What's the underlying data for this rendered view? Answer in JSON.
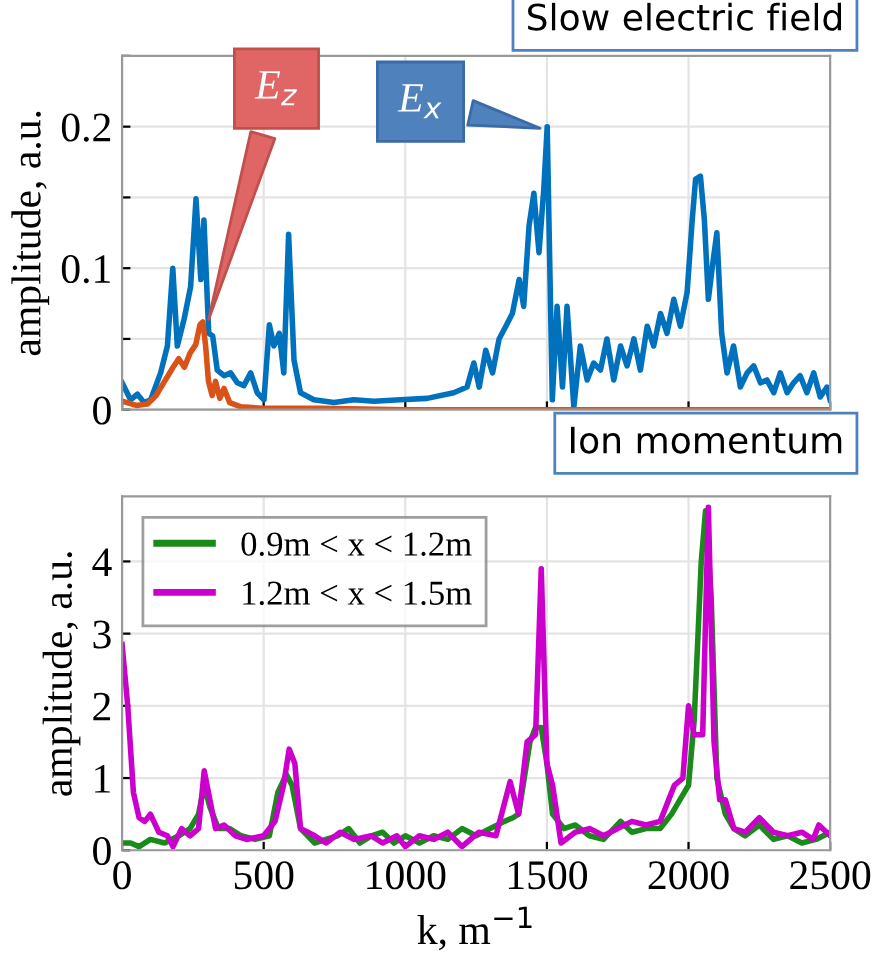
{
  "chart_data": [
    {
      "type": "line",
      "xlim": [
        0,
        2500
      ],
      "xticks": [
        {
          "value": 0,
          "label": null
        },
        {
          "value": 500,
          "label": null
        },
        {
          "value": 1000,
          "label": null
        },
        {
          "value": 1500,
          "label": null
        },
        {
          "value": 2000,
          "label": null
        },
        {
          "value": 2500,
          "label": null
        }
      ],
      "ylim": [
        0,
        0.25
      ],
      "yticks": [
        0,
        {
          "value": 0.05,
          "label": null
        },
        0.1,
        {
          "value": 0.15,
          "label": null
        },
        0.2,
        {
          "value": 0.25,
          "label": null
        }
      ],
      "ylabel": "amplitude, a.u.",
      "tick_labels": "y",
      "grid": true,
      "annotations": [
        "Slow electric field",
        {
          "text": "E$_{z}$",
          "x": 300,
          "y": 0.06
        },
        {
          "text": "E$_{x}$",
          "x": 1495,
          "y": 0.198
        }
      ],
      "series": [
        {
          "color": "#0072bd",
          "x": [
            0,
            30,
            54,
            78,
            101,
            136,
            160,
            179,
            195,
            219,
            242,
            261,
            278,
            289,
            306,
            320,
            336,
            360,
            383,
            407,
            430,
            454,
            477,
            501,
            520,
            536,
            555,
            571,
            588,
            607,
            630,
            677,
            748,
            818,
            889,
            983,
            1077,
            1171,
            1218,
            1242,
            1261,
            1284,
            1308,
            1331,
            1355,
            1378,
            1402,
            1418,
            1437,
            1454,
            1472,
            1489,
            1501,
            1519,
            1536,
            1555,
            1571,
            1595,
            1618,
            1642,
            1665,
            1689,
            1712,
            1736,
            1760,
            1783,
            1807,
            1830,
            1854,
            1877,
            1901,
            1924,
            1948,
            1971,
            1995,
            2013,
            2025,
            2042,
            2056,
            2070,
            2084,
            2100,
            2117,
            2136,
            2159,
            2183,
            2207,
            2230,
            2254,
            2277,
            2301,
            2324,
            2348,
            2371,
            2394,
            2418,
            2442,
            2465,
            2489,
            2500
          ],
          "values": [
            0.019,
            0.007,
            0.011,
            0.005,
            0.007,
            0.026,
            0.045,
            0.1,
            0.045,
            0.064,
            0.087,
            0.149,
            0.092,
            0.134,
            0.054,
            0.052,
            0.028,
            0.024,
            0.026,
            0.019,
            0.017,
            0.026,
            0.012,
            0.007,
            0.06,
            0.045,
            0.054,
            0.026,
            0.124,
            0.035,
            0.012,
            0.007,
            0.005,
            0.007,
            0.006,
            0.007,
            0.008,
            0.012,
            0.016,
            0.033,
            0.016,
            0.042,
            0.026,
            0.05,
            0.059,
            0.068,
            0.092,
            0.073,
            0.13,
            0.153,
            0.111,
            0.156,
            0.2,
            0.007,
            0.073,
            0.016,
            0.073,
            0.002,
            0.045,
            0.021,
            0.033,
            0.028,
            0.05,
            0.021,
            0.045,
            0.031,
            0.05,
            0.028,
            0.059,
            0.045,
            0.068,
            0.054,
            0.078,
            0.059,
            0.083,
            0.134,
            0.163,
            0.165,
            0.134,
            0.078,
            0.101,
            0.125,
            0.054,
            0.026,
            0.045,
            0.016,
            0.026,
            0.031,
            0.019,
            0.021,
            0.012,
            0.026,
            0.012,
            0.019,
            0.024,
            0.012,
            0.026,
            0.009,
            0.016,
            0.007
          ]
        },
        {
          "color": "#d95319",
          "x": [
            0,
            50,
            90,
            120,
            150,
            180,
            200,
            220,
            240,
            260,
            275,
            285,
            295,
            305,
            318,
            330,
            345,
            360,
            380,
            420,
            500,
            700,
            1000,
            1500,
            2000,
            2500
          ],
          "values": [
            0.006,
            0.003,
            0.004,
            0.01,
            0.02,
            0.03,
            0.036,
            0.03,
            0.04,
            0.046,
            0.06,
            0.062,
            0.045,
            0.02,
            0.01,
            0.02,
            0.008,
            0.015,
            0.005,
            0.002,
            0.001,
            0.001,
            0,
            0,
            0,
            0
          ]
        }
      ]
    },
    {
      "type": "line",
      "xlim": [
        0,
        2500
      ],
      "xticks": [
        0,
        500,
        1000,
        1500,
        2000,
        2500
      ],
      "ylim": [
        0,
        4.9
      ],
      "yticks": [
        0,
        1,
        2,
        3,
        4
      ],
      "xlabel": "k, m$^{−1}$",
      "ylabel": "amplitude, a.u.",
      "grid": true,
      "legend": "top left",
      "annotations": [
        "Ion momentum"
      ],
      "series": [
        {
          "name": "0.9m < x < 1.2m",
          "color": "#1a8a1a",
          "x": [
            0,
            30,
            60,
            100,
            150,
            200,
            240,
            270,
            290,
            310,
            340,
            380,
            420,
            470,
            520,
            550,
            580,
            600,
            630,
            680,
            720,
            760,
            800,
            840,
            880,
            920,
            960,
            1000,
            1050,
            1100,
            1150,
            1200,
            1250,
            1300,
            1350,
            1380,
            1400,
            1420,
            1440,
            1460,
            1480,
            1500,
            1520,
            1560,
            1600,
            1650,
            1700,
            1760,
            1800,
            1850,
            1900,
            1940,
            1970,
            2000,
            2020,
            2045,
            2060,
            2080,
            2100,
            2130,
            2160,
            2200,
            2250,
            2300,
            2350,
            2400,
            2450,
            2500
          ],
          "values": [
            0.1,
            0.1,
            0.05,
            0.15,
            0.1,
            0.2,
            0.3,
            0.5,
            0.9,
            0.6,
            0.3,
            0.3,
            0.2,
            0.15,
            0.2,
            0.8,
            1.05,
            0.9,
            0.3,
            0.1,
            0.15,
            0.2,
            0.3,
            0.1,
            0.2,
            0.25,
            0.1,
            0.2,
            0.1,
            0.2,
            0.15,
            0.3,
            0.2,
            0.3,
            0.4,
            0.45,
            0.5,
            1.0,
            1.5,
            1.7,
            1.7,
            1.2,
            0.5,
            0.3,
            0.35,
            0.2,
            0.15,
            0.4,
            0.25,
            0.3,
            0.3,
            0.5,
            0.7,
            0.9,
            1.8,
            4.0,
            4.7,
            3.5,
            1.0,
            0.5,
            0.3,
            0.2,
            0.35,
            0.15,
            0.2,
            0.1,
            0.15,
            0.25
          ]
        },
        {
          "name": "1.2m < x < 1.5m",
          "color": "#cc00cc",
          "x": [
            0,
            20,
            40,
            60,
            80,
            100,
            130,
            160,
            180,
            210,
            240,
            270,
            290,
            310,
            330,
            360,
            400,
            440,
            500,
            540,
            570,
            590,
            610,
            630,
            680,
            720,
            770,
            820,
            880,
            920,
            970,
            1000,
            1050,
            1100,
            1150,
            1200,
            1260,
            1320,
            1370,
            1400,
            1430,
            1460,
            1480,
            1500,
            1520,
            1550,
            1600,
            1650,
            1700,
            1750,
            1800,
            1850,
            1900,
            1950,
            1980,
            2000,
            2020,
            2050,
            2070,
            2090,
            2110,
            2130,
            2160,
            2200,
            2250,
            2300,
            2350,
            2400,
            2440,
            2460,
            2500
          ],
          "values": [
            2.85,
            2.0,
            0.8,
            0.45,
            0.4,
            0.5,
            0.25,
            0.2,
            0.05,
            0.3,
            0.2,
            0.3,
            1.1,
            0.7,
            0.3,
            0.35,
            0.2,
            0.15,
            0.2,
            0.4,
            0.9,
            1.4,
            1.2,
            0.3,
            0.2,
            0.1,
            0.25,
            0.15,
            0.2,
            0.1,
            0.2,
            0.05,
            0.2,
            0.15,
            0.25,
            0.05,
            0.25,
            0.2,
            0.95,
            0.5,
            1.5,
            1.6,
            3.9,
            1.2,
            0.9,
            0.1,
            0.25,
            0.3,
            0.2,
            0.3,
            0.4,
            0.35,
            0.4,
            0.9,
            1.0,
            2.0,
            1.6,
            1.6,
            4.75,
            1.5,
            0.7,
            0.7,
            0.3,
            0.25,
            0.45,
            0.25,
            0.2,
            0.25,
            0.15,
            0.35,
            0.2
          ]
        }
      ]
    }
  ]
}
